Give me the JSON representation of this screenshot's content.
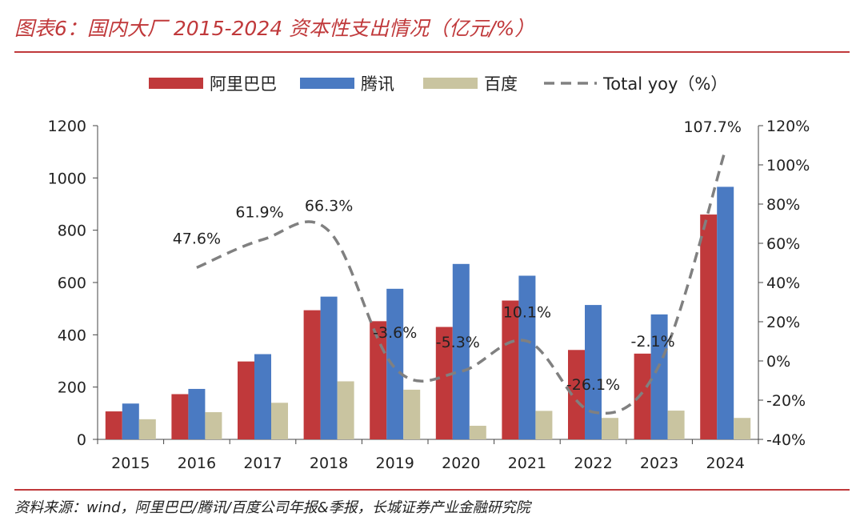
{
  "header": {
    "title": "图表6：国内大厂 2015-2024 资本性支出情况（亿元/%）"
  },
  "footer": {
    "source": "资料来源：wind，阿里巴巴/腾讯/百度公司年报&季报，长城证券产业金融研究院"
  },
  "colors": {
    "accent": "#c0393b",
    "alibaba": "#c0393b",
    "tencent": "#4a7ac2",
    "baidu": "#c9c4a0",
    "yoy": "#808080"
  },
  "chart_data": {
    "type": "bar",
    "categories": [
      "2015",
      "2016",
      "2017",
      "2018",
      "2019",
      "2020",
      "2021",
      "2022",
      "2023",
      "2024"
    ],
    "series": [
      {
        "name": "阿里巴巴",
        "type": "bar",
        "axis": "left",
        "color": "#c0393b",
        "values": [
          107,
          173,
          298,
          494,
          452,
          430,
          531,
          342,
          328,
          860
        ]
      },
      {
        "name": "腾讯",
        "type": "bar",
        "axis": "left",
        "color": "#4a7ac2",
        "values": [
          137,
          193,
          326,
          546,
          576,
          671,
          626,
          514,
          478,
          966
        ]
      },
      {
        "name": "百度",
        "type": "bar",
        "axis": "left",
        "color": "#c9c4a0",
        "values": [
          77,
          104,
          140,
          222,
          190,
          52,
          109,
          82,
          110,
          82
        ]
      },
      {
        "name": "Total yoy（%）",
        "type": "line",
        "style": "dashed",
        "axis": "right",
        "color": "#808080",
        "values": [
          null,
          47.6,
          61.9,
          66.3,
          -3.6,
          -5.3,
          10.1,
          -26.1,
          -2.1,
          107.7
        ],
        "labels": [
          "",
          "47.6%",
          "61.9%",
          "66.3%",
          "-3.6%",
          "-5.3%",
          "10.1%",
          "-26.1%",
          "-2.1%",
          "107.7%"
        ]
      }
    ],
    "y_left": {
      "range": [
        0,
        1200
      ],
      "ticks": [
        0,
        200,
        400,
        600,
        800,
        1000,
        1200
      ],
      "tick_labels": [
        "0",
        "200",
        "400",
        "600",
        "800",
        "1000",
        "1200"
      ]
    },
    "y_right": {
      "range": [
        -40,
        120
      ],
      "ticks": [
        -40,
        -20,
        0,
        20,
        40,
        60,
        80,
        100,
        120
      ],
      "tick_labels": [
        "-40%",
        "-20%",
        "0%",
        "20%",
        "40%",
        "60%",
        "80%",
        "100%",
        "120%"
      ]
    },
    "legend": {
      "position": "top",
      "entries": [
        "阿里巴巴",
        "腾讯",
        "百度",
        "Total yoy（%）"
      ]
    },
    "grid": false
  }
}
